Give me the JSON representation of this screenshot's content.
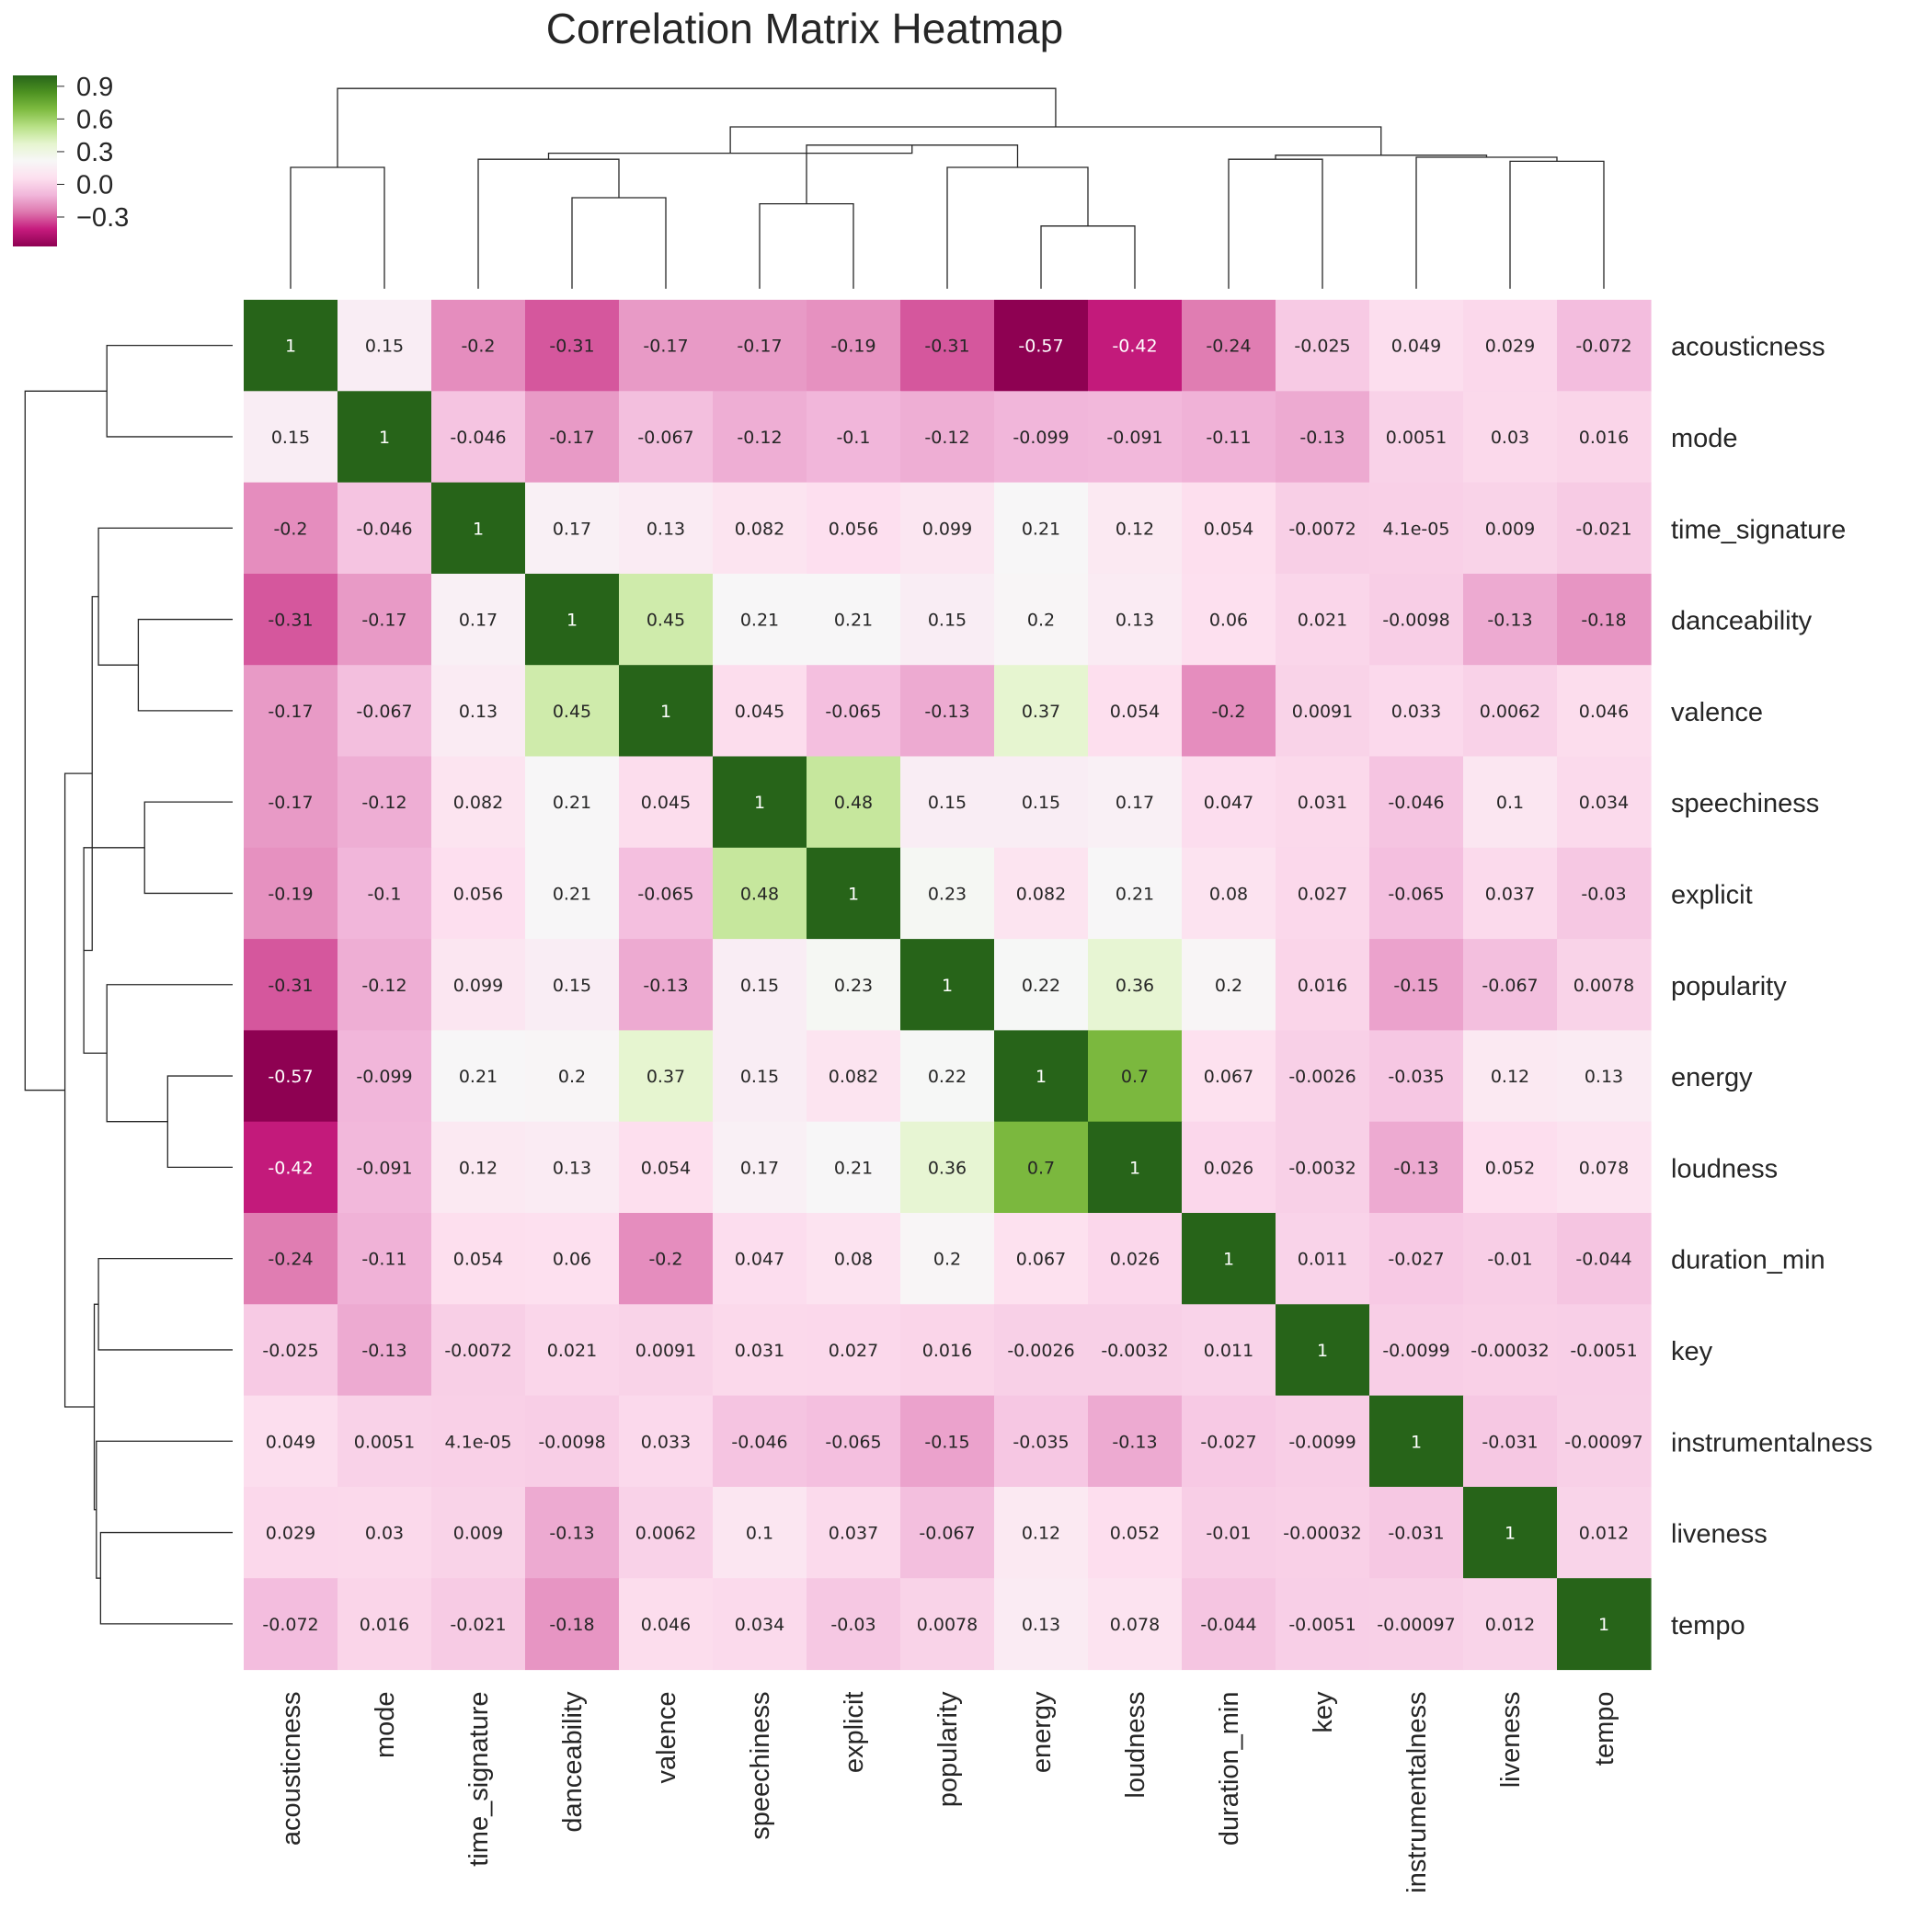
{
  "chart_data": {
    "type": "heatmap",
    "title": "Correlation Matrix Heatmap",
    "colormap": "PiYG",
    "colorbar": {
      "ticks": [
        "0.9",
        "0.6",
        "0.3",
        "0.0",
        "−0.3"
      ],
      "vmin": -0.57,
      "vmax": 1.0
    },
    "variables": [
      "acousticness",
      "mode",
      "time_signature",
      "danceability",
      "valence",
      "speechiness",
      "explicit",
      "popularity",
      "energy",
      "loudness",
      "duration_min",
      "key",
      "instrumentalness",
      "liveness",
      "tempo"
    ],
    "values": [
      [
        1,
        0.15,
        -0.2,
        -0.31,
        -0.17,
        -0.17,
        -0.19,
        -0.31,
        -0.57,
        -0.42,
        -0.24,
        -0.025,
        0.049,
        0.029,
        -0.072
      ],
      [
        0.15,
        1,
        -0.046,
        -0.17,
        -0.067,
        -0.12,
        -0.1,
        -0.12,
        -0.099,
        -0.091,
        -0.11,
        -0.13,
        0.0051,
        0.03,
        0.016
      ],
      [
        -0.2,
        -0.046,
        1,
        0.17,
        0.13,
        0.082,
        0.056,
        0.099,
        0.21,
        0.12,
        0.054,
        -0.0072,
        4.1e-05,
        0.009,
        -0.021
      ],
      [
        -0.31,
        -0.17,
        0.17,
        1,
        0.45,
        0.21,
        0.21,
        0.15,
        0.2,
        0.13,
        0.06,
        0.021,
        -0.0098,
        -0.13,
        -0.18
      ],
      [
        -0.17,
        -0.067,
        0.13,
        0.45,
        1,
        0.045,
        -0.065,
        -0.13,
        0.37,
        0.054,
        -0.2,
        0.0091,
        0.033,
        0.0062,
        0.046
      ],
      [
        -0.17,
        -0.12,
        0.082,
        0.21,
        0.045,
        1,
        0.48,
        0.15,
        0.15,
        0.17,
        0.047,
        0.031,
        -0.046,
        0.1,
        0.034
      ],
      [
        -0.19,
        -0.1,
        0.056,
        0.21,
        -0.065,
        0.48,
        1,
        0.23,
        0.082,
        0.21,
        0.08,
        0.027,
        -0.065,
        0.037,
        -0.03
      ],
      [
        -0.31,
        -0.12,
        0.099,
        0.15,
        -0.13,
        0.15,
        0.23,
        1,
        0.22,
        0.36,
        0.2,
        0.016,
        -0.15,
        -0.067,
        0.0078
      ],
      [
        -0.57,
        -0.099,
        0.21,
        0.2,
        0.37,
        0.15,
        0.082,
        0.22,
        1,
        0.7,
        0.067,
        -0.0026,
        -0.035,
        0.12,
        0.13
      ],
      [
        -0.42,
        -0.091,
        0.12,
        0.13,
        0.054,
        0.17,
        0.21,
        0.36,
        0.7,
        1,
        0.026,
        -0.0032,
        -0.13,
        0.052,
        0.078
      ],
      [
        -0.24,
        -0.11,
        0.054,
        0.06,
        -0.2,
        0.047,
        0.08,
        0.2,
        0.067,
        0.026,
        1,
        0.011,
        -0.027,
        -0.01,
        -0.044
      ],
      [
        -0.025,
        -0.13,
        -0.0072,
        0.021,
        0.0091,
        0.031,
        0.027,
        0.016,
        -0.0026,
        -0.0032,
        0.011,
        1,
        -0.0099,
        -0.00032,
        -0.0051
      ],
      [
        0.049,
        0.0051,
        4.1e-05,
        -0.0098,
        0.033,
        -0.046,
        -0.065,
        -0.15,
        -0.035,
        -0.13,
        -0.027,
        -0.0099,
        1,
        -0.031,
        -0.00097
      ],
      [
        0.029,
        0.03,
        0.009,
        -0.13,
        0.0062,
        0.1,
        0.037,
        -0.067,
        0.12,
        0.052,
        -0.01,
        -0.00032,
        -0.031,
        1,
        0.012
      ],
      [
        -0.072,
        0.016,
        -0.021,
        -0.18,
        0.046,
        0.034,
        -0.03,
        0.0078,
        0.13,
        0.078,
        -0.044,
        -0.0051,
        -0.00097,
        0.012,
        1
      ]
    ],
    "annotations": [
      [
        "1",
        "0.15",
        "-0.2",
        "-0.31",
        "-0.17",
        "-0.17",
        "-0.19",
        "-0.31",
        "-0.57",
        "-0.42",
        "-0.24",
        "-0.025",
        "0.049",
        "0.029",
        "-0.072"
      ],
      [
        "0.15",
        "1",
        "-0.046",
        "-0.17",
        "-0.067",
        "-0.12",
        "-0.1",
        "-0.12",
        "-0.099",
        "-0.091",
        "-0.11",
        "-0.13",
        "0.0051",
        "0.03",
        "0.016"
      ],
      [
        "-0.2",
        "-0.046",
        "1",
        "0.17",
        "0.13",
        "0.082",
        "0.056",
        "0.099",
        "0.21",
        "0.12",
        "0.054",
        "-0.0072",
        "4.1e-05",
        "0.009",
        "-0.021"
      ],
      [
        "-0.31",
        "-0.17",
        "0.17",
        "1",
        "0.45",
        "0.21",
        "0.21",
        "0.15",
        "0.2",
        "0.13",
        "0.06",
        "0.021",
        "-0.0098",
        "-0.13",
        "-0.18"
      ],
      [
        "-0.17",
        "-0.067",
        "0.13",
        "0.45",
        "1",
        "0.045",
        "-0.065",
        "-0.13",
        "0.37",
        "0.054",
        "-0.2",
        "0.0091",
        "0.033",
        "0.0062",
        "0.046"
      ],
      [
        "-0.17",
        "-0.12",
        "0.082",
        "0.21",
        "0.045",
        "1",
        "0.48",
        "0.15",
        "0.15",
        "0.17",
        "0.047",
        "0.031",
        "-0.046",
        "0.1",
        "0.034"
      ],
      [
        "-0.19",
        "-0.1",
        "0.056",
        "0.21",
        "-0.065",
        "0.48",
        "1",
        "0.23",
        "0.082",
        "0.21",
        "0.08",
        "0.027",
        "-0.065",
        "0.037",
        "-0.03"
      ],
      [
        "-0.31",
        "-0.12",
        "0.099",
        "0.15",
        "-0.13",
        "0.15",
        "0.23",
        "1",
        "0.22",
        "0.36",
        "0.2",
        "0.016",
        "-0.15",
        "-0.067",
        "0.0078"
      ],
      [
        "-0.57",
        "-0.099",
        "0.21",
        "0.2",
        "0.37",
        "0.15",
        "0.082",
        "0.22",
        "1",
        "0.7",
        "0.067",
        "-0.0026",
        "-0.035",
        "0.12",
        "0.13"
      ],
      [
        "-0.42",
        "-0.091",
        "0.12",
        "0.13",
        "0.054",
        "0.17",
        "0.21",
        "0.36",
        "0.7",
        "1",
        "0.026",
        "-0.0032",
        "-0.13",
        "0.052",
        "0.078"
      ],
      [
        "-0.24",
        "-0.11",
        "0.054",
        "0.06",
        "-0.2",
        "0.047",
        "0.08",
        "0.2",
        "0.067",
        "0.026",
        "1",
        "0.011",
        "-0.027",
        "-0.01",
        "-0.044"
      ],
      [
        "-0.025",
        "-0.13",
        "-0.0072",
        "0.021",
        "0.0091",
        "0.031",
        "0.027",
        "0.016",
        "-0.0026",
        "-0.0032",
        "0.011",
        "1",
        "-0.0099",
        "-0.00032",
        "-0.0051"
      ],
      [
        "0.049",
        "0.0051",
        "4.1e-05",
        "-0.0098",
        "0.033",
        "-0.046",
        "-0.065",
        "-0.15",
        "-0.035",
        "-0.13",
        "-0.027",
        "-0.0099",
        "1",
        "-0.031",
        "-0.00097"
      ],
      [
        "0.029",
        "0.03",
        "0.009",
        "-0.13",
        "0.0062",
        "0.1",
        "0.037",
        "-0.067",
        "0.12",
        "0.052",
        "-0.01",
        "-0.00032",
        "-0.031",
        "1",
        "0.012"
      ],
      [
        "-0.072",
        "0.016",
        "-0.021",
        "-0.18",
        "0.046",
        "0.034",
        "-0.03",
        "0.0078",
        "0.13",
        "0.078",
        "-0.044",
        "-0.0051",
        "-0.00097",
        "0.012",
        "1"
      ]
    ],
    "dendrogram": {
      "shown": true,
      "position": [
        "top",
        "left"
      ]
    }
  }
}
